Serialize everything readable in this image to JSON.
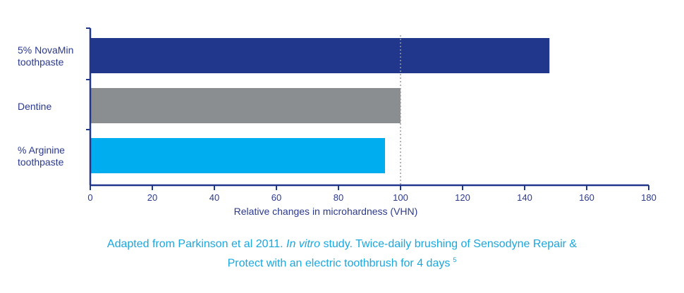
{
  "chart_data": {
    "type": "bar",
    "orientation": "horizontal",
    "categories": [
      [
        "5% NovaMin",
        "toothpaste"
      ],
      [
        "Dentine"
      ],
      [
        "% Arginine",
        "toothpaste"
      ]
    ],
    "values": [
      148,
      100,
      95
    ],
    "colors": [
      "#21378c",
      "#8b8e90",
      "#00adee"
    ],
    "xlabel": "Relative changes in microhardness (VHN)",
    "xlim": [
      0,
      180
    ],
    "xticks": [
      0,
      20,
      40,
      60,
      80,
      100,
      120,
      140,
      160,
      180
    ],
    "reference_line": 100,
    "grid": false,
    "axis_color": "#21378c"
  },
  "caption": {
    "part1": "Adapted from Parkinson et al 2011. ",
    "italic": "In vitro",
    "part2": " study. Twice-daily brushing of Sensodyne Repair &",
    "line2": "Protect with an electric toothbrush for 4 days",
    "ref": "5"
  }
}
